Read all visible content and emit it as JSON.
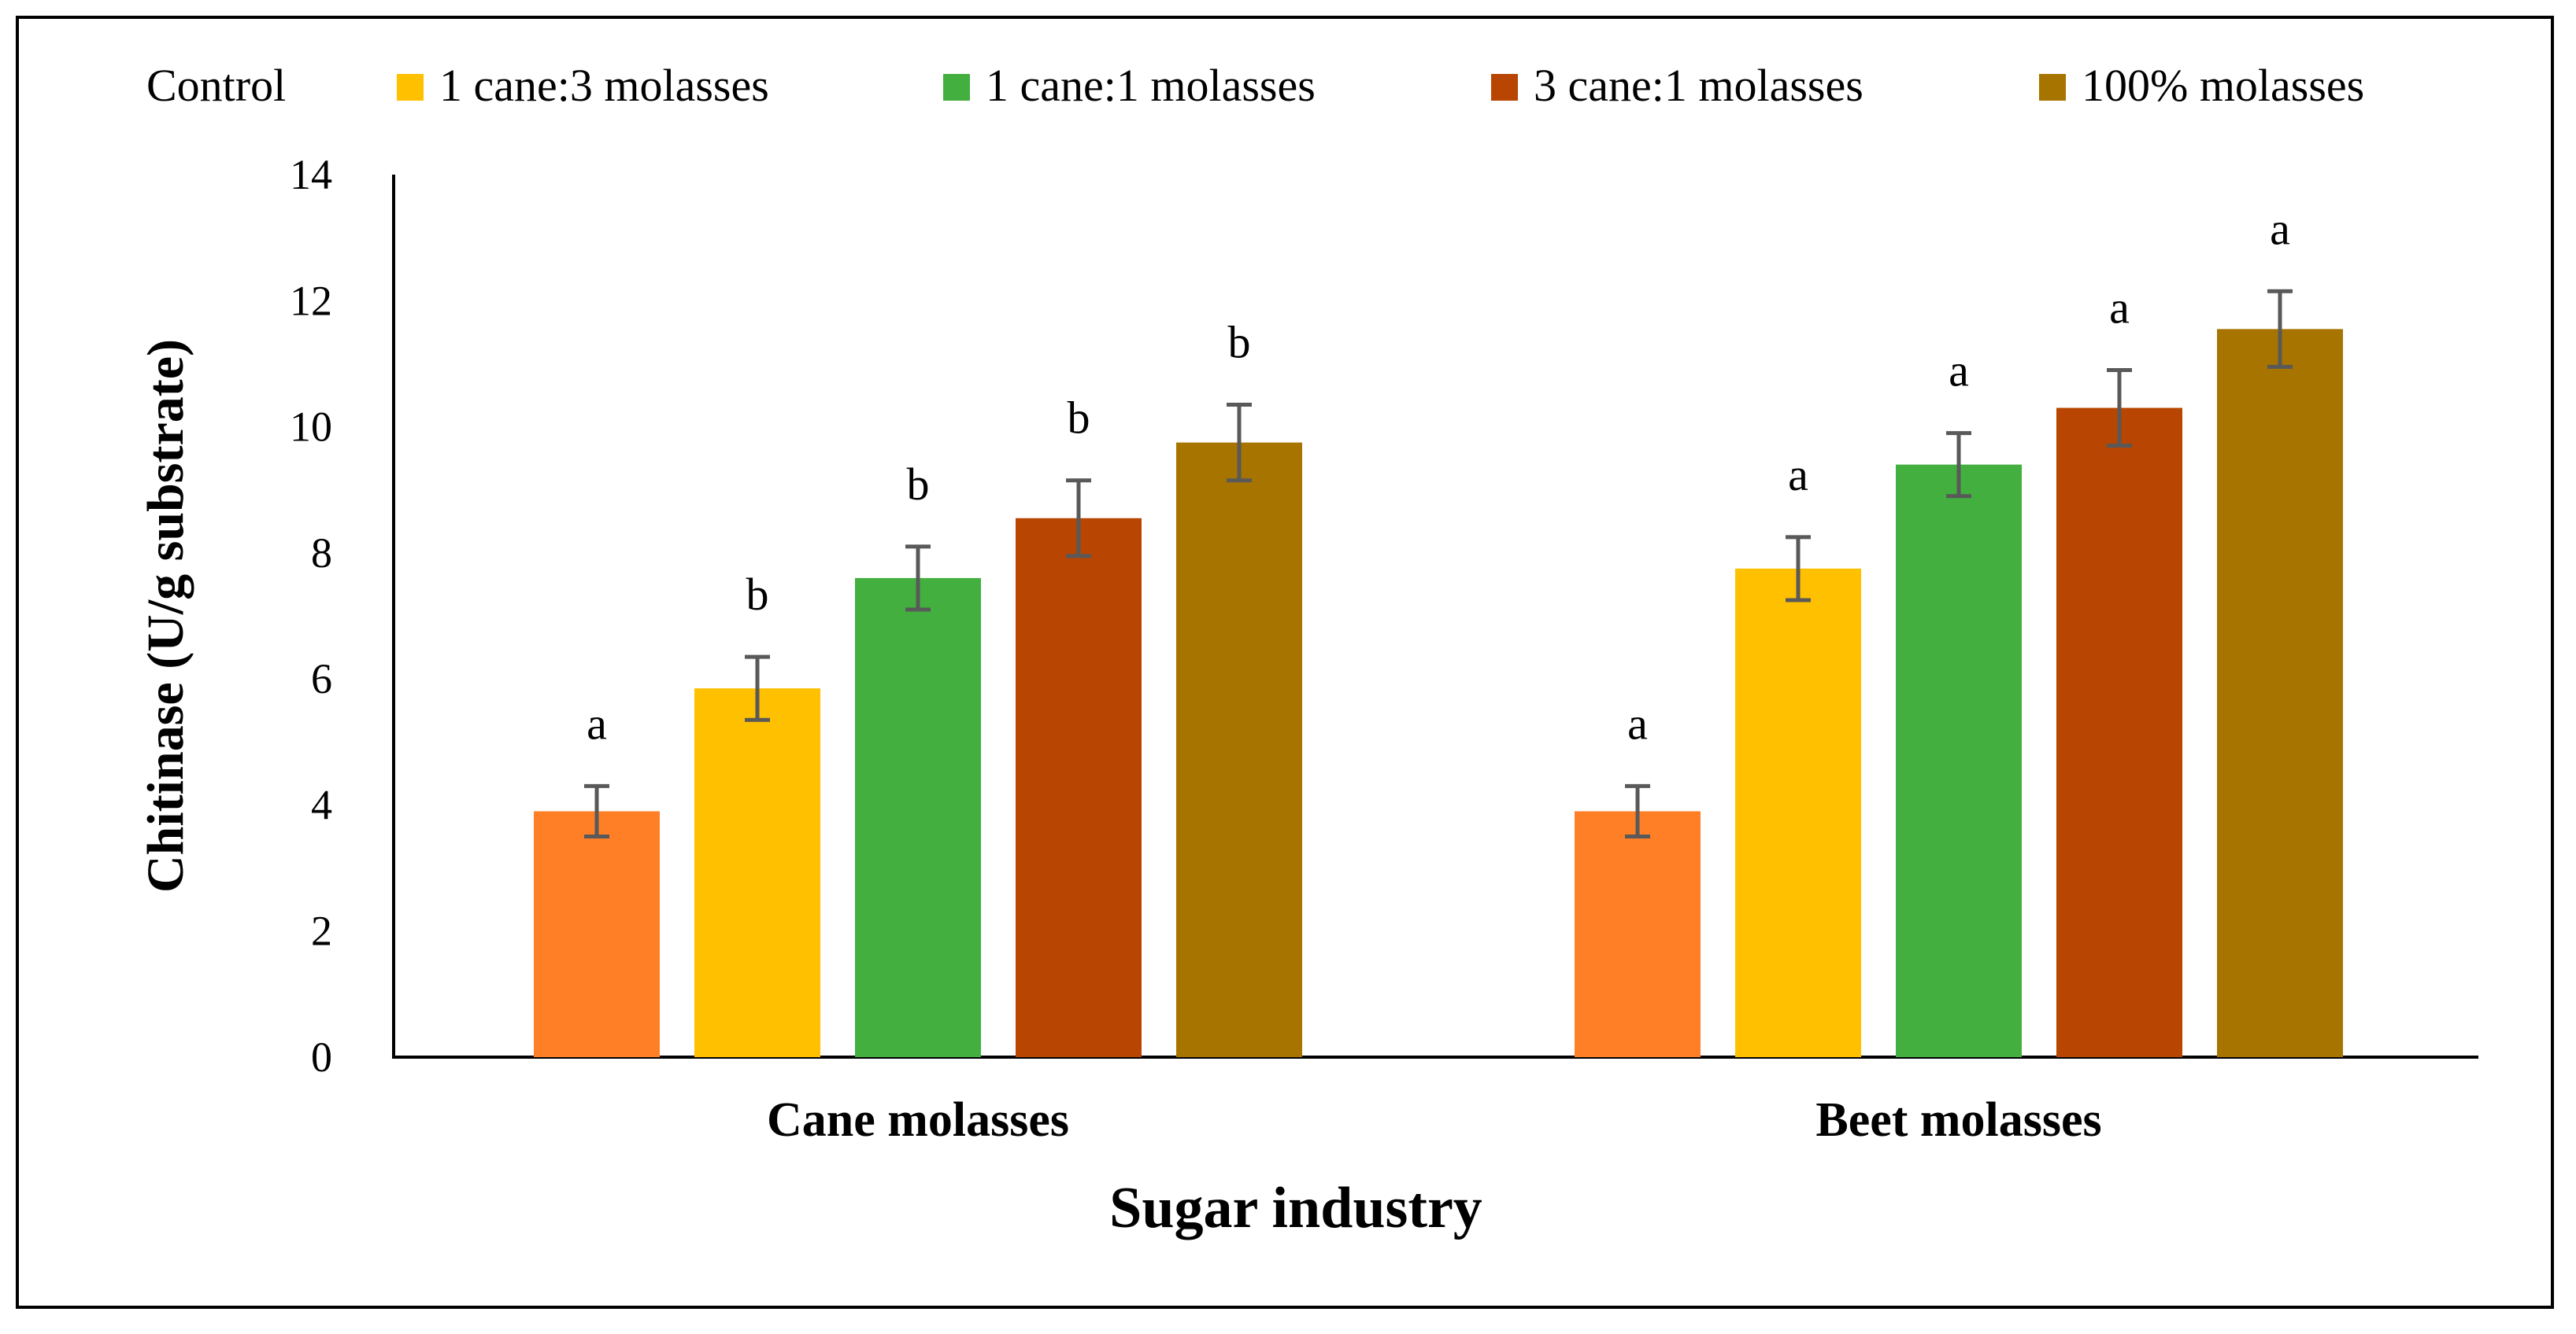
{
  "chart_data": {
    "type": "bar",
    "title": "",
    "xlabel": "Sugar industry",
    "ylabel": "Chitinase (U/g substrate)",
    "ylim": [
      0,
      14
    ],
    "yticks": [
      0,
      2,
      4,
      6,
      8,
      10,
      12,
      14
    ],
    "ytick_labels": [
      "0",
      "2",
      "4",
      "6",
      "8",
      "10",
      "12",
      "14"
    ],
    "categories": [
      "Cane molasses",
      "Beet molasses"
    ],
    "legend_position": "top",
    "grid": false,
    "series": [
      {
        "name": "Control",
        "color": "#FF7F27",
        "values": [
          3.9,
          3.9
        ],
        "errors": [
          0.4,
          0.4
        ],
        "letters": [
          "a",
          "a"
        ]
      },
      {
        "name": "1 cane:3 molasses",
        "color": "#FFC000",
        "values": [
          5.85,
          7.75
        ],
        "errors": [
          0.5,
          0.5
        ],
        "letters": [
          "b",
          "a"
        ]
      },
      {
        "name": "1 cane:1 molasses",
        "color": "#43AF3F",
        "values": [
          7.6,
          9.4
        ],
        "errors": [
          0.5,
          0.5
        ],
        "letters": [
          "b",
          "a"
        ]
      },
      {
        "name": "3 cane:1 molasses",
        "color": "#B84602",
        "values": [
          8.55,
          10.3
        ],
        "errors": [
          0.6,
          0.6
        ],
        "letters": [
          "b",
          "a"
        ]
      },
      {
        "name": "100% molasses",
        "color": "#A87400",
        "values": [
          9.75,
          11.55
        ],
        "errors": [
          0.6,
          0.6
        ],
        "letters": [
          "b",
          "a"
        ]
      }
    ],
    "axis_color": "#000000",
    "error_bar_color": "#595959"
  }
}
